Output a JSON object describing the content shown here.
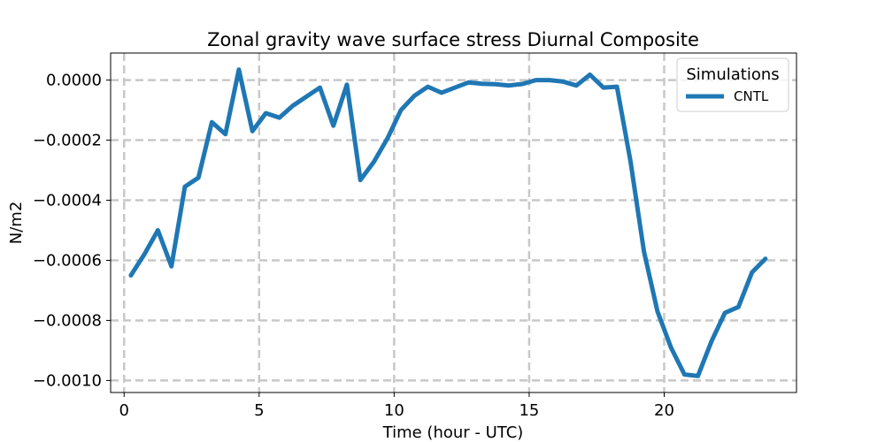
{
  "chart_data": {
    "type": "line",
    "title": "Zonal gravity wave surface stress Diurnal Composite",
    "xlabel": "Time (hour - UTC)",
    "ylabel": "N/m2",
    "xlim": [
      -0.5,
      24.9
    ],
    "ylim": [
      -0.00104,
      9e-05
    ],
    "xticks": [
      0,
      5,
      10,
      15,
      20
    ],
    "xtick_labels": [
      "0",
      "5",
      "10",
      "15",
      "20"
    ],
    "yticks": [
      0.0,
      -0.0002,
      -0.0004,
      -0.0006,
      -0.0008,
      -0.001
    ],
    "ytick_labels": [
      "0.0000",
      "−0.0002",
      "−0.0004",
      "−0.0006",
      "−0.0008",
      "−0.0010"
    ],
    "grid": true,
    "grid_style": "dashed",
    "legend": {
      "title": "Simulations",
      "position": "top-right"
    },
    "series": [
      {
        "name": "CNTL",
        "color": "#1f77b4",
        "x": [
          0.25,
          0.75,
          1.25,
          1.75,
          2.25,
          2.75,
          3.25,
          3.75,
          4.25,
          4.75,
          5.25,
          5.75,
          6.25,
          6.75,
          7.25,
          7.75,
          8.25,
          8.75,
          9.25,
          9.75,
          10.25,
          10.75,
          11.25,
          11.75,
          12.25,
          12.75,
          13.25,
          13.75,
          14.25,
          14.75,
          15.25,
          15.75,
          16.25,
          16.75,
          17.25,
          17.75,
          18.25,
          18.75,
          19.25,
          19.75,
          20.25,
          20.75,
          21.25,
          21.75,
          22.25,
          22.75,
          23.25,
          23.75
        ],
        "values": [
          -0.00065,
          -0.00058,
          -0.0005,
          -0.00062,
          -0.000355,
          -0.000325,
          -0.00014,
          -0.00018,
          3.5e-05,
          -0.00017,
          -0.00011,
          -0.000125,
          -8.5e-05,
          -5.5e-05,
          -2.5e-05,
          -0.000152,
          -1.5e-05,
          -0.000333,
          -0.000272,
          -0.000195,
          -0.0001,
          -5.2e-05,
          -2.2e-05,
          -4.2e-05,
          -2.5e-05,
          -8e-06,
          -1.2e-05,
          -1.4e-05,
          -1.8e-05,
          -1.3e-05,
          0.0,
          0.0,
          -5e-06,
          -1.8e-05,
          1.8e-05,
          -2.5e-05,
          -2.2e-05,
          -0.00027,
          -0.00057,
          -0.00077,
          -0.00089,
          -0.00098,
          -0.000985,
          -0.00087,
          -0.000775,
          -0.000755,
          -0.00064,
          -0.000595
        ]
      }
    ]
  }
}
